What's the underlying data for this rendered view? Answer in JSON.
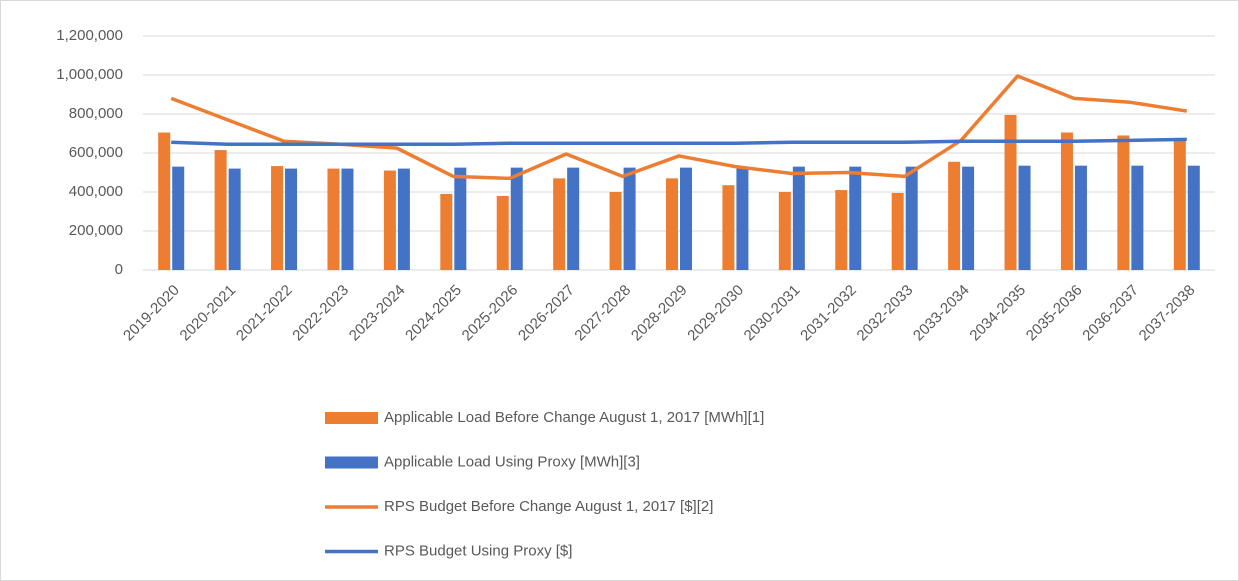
{
  "chart_data": {
    "type": "bar",
    "categories": [
      "2019-2020",
      "2020-2021",
      "2021-2022",
      "2022-2023",
      "2023-2024",
      "2024-2025",
      "2025-2026",
      "2026-2027",
      "2027-2028",
      "2028-2029",
      "2029-2030",
      "2030-2031",
      "2031-2032",
      "2032-2033",
      "2033-2034",
      "2034-2035",
      "2035-2036",
      "2036-2037",
      "2037-2038"
    ],
    "series": [
      {
        "name": "Applicable Load Before Change August 1, 2017 [MWh][1]",
        "type": "bar",
        "color": "#ed7d31",
        "values": [
          705000,
          615000,
          533000,
          520000,
          510000,
          390000,
          380000,
          470000,
          400000,
          470000,
          435000,
          400000,
          410000,
          395000,
          555000,
          795000,
          705000,
          690000,
          665000
        ]
      },
      {
        "name": "Applicable Load Using Proxy [MWh][3]",
        "type": "bar",
        "color": "#4472c4",
        "values": [
          530000,
          520000,
          520000,
          520000,
          520000,
          525000,
          525000,
          525000,
          525000,
          525000,
          525000,
          530000,
          530000,
          530000,
          530000,
          535000,
          535000,
          535000,
          535000
        ]
      },
      {
        "name": "RPS Budget Before Change August 1, 2017 [$][2]",
        "type": "line",
        "color": "#ed7d31",
        "values": [
          880000,
          770000,
          660000,
          645000,
          625000,
          480000,
          470000,
          595000,
          480000,
          585000,
          530000,
          495000,
          500000,
          480000,
          665000,
          995000,
          880000,
          860000,
          815000
        ]
      },
      {
        "name": "RPS Budget Using Proxy [$]",
        "type": "line",
        "color": "#4472c4",
        "values": [
          655000,
          645000,
          645000,
          645000,
          645000,
          645000,
          650000,
          650000,
          650000,
          650000,
          650000,
          655000,
          655000,
          655000,
          660000,
          660000,
          660000,
          665000,
          670000
        ]
      }
    ],
    "ylim": [
      0,
      1200000
    ],
    "yticks": [
      0,
      {
        "value": 200000,
        "label": "200,000"
      },
      {
        "value": 400000,
        "label": "400,000"
      },
      {
        "value": 600000,
        "label": "600,000"
      },
      {
        "value": 800000,
        "label": "800,000"
      },
      {
        "value": 1000000,
        "label": "1,000,000"
      },
      {
        "value": 1200000,
        "label": "1,200,000"
      }
    ],
    "grid": true,
    "legend": "bottom"
  }
}
